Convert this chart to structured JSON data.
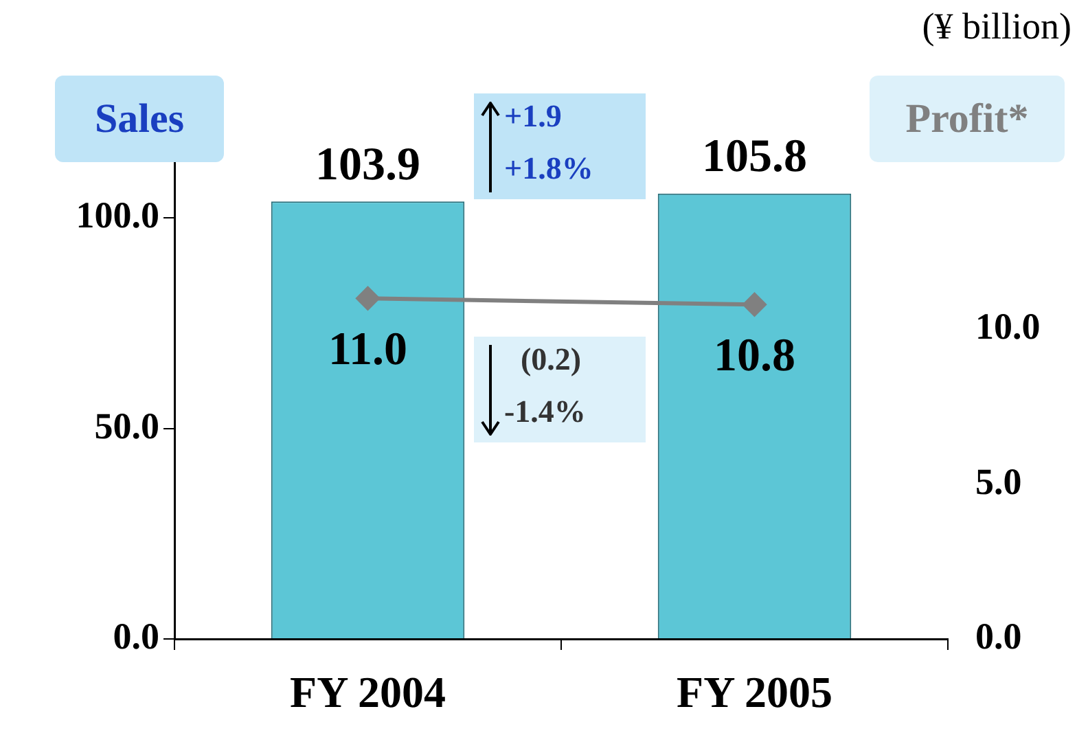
{
  "chart_data": {
    "type": "bar",
    "categories": [
      "FY 2004",
      "FY 2005"
    ],
    "series": [
      {
        "name": "Sales",
        "color": "#5cc6d6",
        "values": [
          103.9,
          105.8
        ],
        "value_labels": [
          "103.9",
          "105.8"
        ]
      },
      {
        "name": "Profit*",
        "type": "line",
        "axis": "y2",
        "color": "#808080",
        "values": [
          11.0,
          10.8
        ],
        "value_labels": [
          "11.0",
          "10.8"
        ]
      }
    ],
    "ylim": [
      0,
      125
    ],
    "yticks": [
      {
        "value": 0,
        "label": "0.0"
      },
      {
        "value": 50,
        "label": "50.0"
      },
      {
        "value": 100,
        "label": "100.0"
      }
    ],
    "y2lim": [
      0,
      17
    ],
    "y2ticks": [
      {
        "value": 0,
        "label": "0.0"
      },
      {
        "value": 5,
        "label": "5.0"
      },
      {
        "value": 10,
        "label": "10.0"
      }
    ],
    "marker": "diamond",
    "grid": false,
    "legend": false,
    "annotations": [
      "(¥ billion)",
      "+1.9",
      "+1.8%",
      "(0.2)",
      "-1.4%"
    ]
  }
}
